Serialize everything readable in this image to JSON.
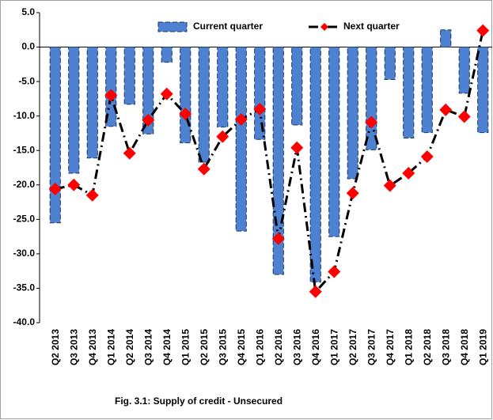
{
  "chart_data": {
    "type": "bar_line",
    "caption": "Fig. 3.1: Supply of credit - Unsecured",
    "categories": [
      "Q2 2013",
      "Q3 2013",
      "Q4 2013",
      "Q1 2014",
      "Q2 2014",
      "Q3 2014",
      "Q4 2014",
      "Q1 2015",
      "Q2 2015",
      "Q3 2015",
      "Q4 2015",
      "Q1 2016",
      "Q2 2016",
      "Q3 2016",
      "Q4 2016",
      "Q1 2017",
      "Q2 2017",
      "Q3 2017",
      "Q4 2017",
      "Q1 2018",
      "Q2 2018",
      "Q3 2018",
      "Q4 2018",
      "Q1 2019"
    ],
    "series": [
      {
        "name": "Current quarter",
        "kind": "bar",
        "color": "#4f81d1",
        "values": [
          -25.5,
          -18.3,
          -16.1,
          -11.5,
          -8.3,
          -12.6,
          -2.2,
          -13.9,
          -16.7,
          -11.6,
          -26.7,
          -13.4,
          -33.0,
          -11.3,
          -34.1,
          -27.5,
          -19.1,
          -14.9,
          -4.7,
          -13.2,
          -12.4,
          2.5,
          -6.7,
          -12.4
        ]
      },
      {
        "name": "Next quarter",
        "kind": "line",
        "color": "#ff0000",
        "values": [
          -20.6,
          -20.0,
          -21.5,
          -7.0,
          -15.4,
          -10.6,
          -6.8,
          -9.7,
          -17.7,
          -13.0,
          -10.5,
          -9.0,
          -27.8,
          -14.6,
          -35.5,
          -32.6,
          -21.2,
          -10.9,
          -20.1,
          -18.3,
          -15.9,
          -9.1,
          -10.1,
          2.4
        ]
      }
    ],
    "ylim": [
      -40,
      5
    ],
    "yticks": [
      {
        "value": 5,
        "label": "5.0"
      },
      {
        "value": 0,
        "label": "0.0"
      },
      {
        "value": -5,
        "label": "-5.0"
      },
      {
        "value": -10,
        "label": "-10.0"
      },
      {
        "value": -15,
        "label": "-15.0"
      },
      {
        "value": -20,
        "label": "-20.0"
      },
      {
        "value": -25,
        "label": "-25.0"
      },
      {
        "value": -30,
        "label": "-30.0"
      },
      {
        "value": -35,
        "label": "-35.0"
      },
      {
        "value": -40,
        "label": "-40.0"
      }
    ],
    "grid": false
  }
}
